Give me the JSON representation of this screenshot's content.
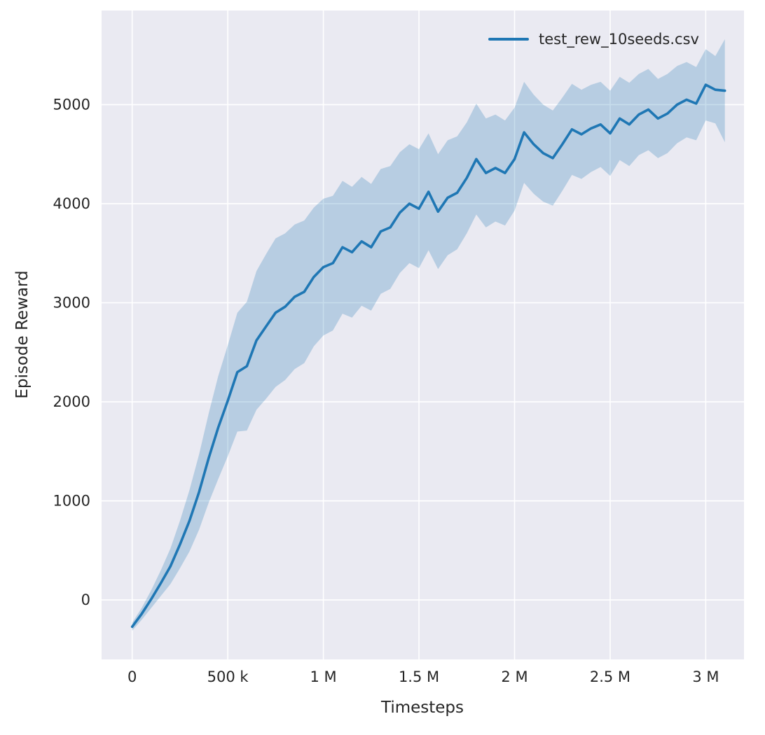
{
  "figure": {
    "background": "#ffffff",
    "axes_background": "#eaeaf2",
    "grid_color": "#ffffff",
    "text_color": "#262626"
  },
  "chart_data": {
    "type": "line",
    "title": "",
    "xlabel": "Timesteps",
    "ylabel": "Episode Reward",
    "xlim": [
      -160000,
      3200000
    ],
    "ylim": [
      -600,
      5950
    ],
    "grid": true,
    "legend_position": "upper right",
    "x_ticks": [
      {
        "value": 0,
        "label": "0"
      },
      {
        "value": 500000,
        "label": "500 k"
      },
      {
        "value": 1000000,
        "label": "1 M"
      },
      {
        "value": 1500000,
        "label": "1.5 M"
      },
      {
        "value": 2000000,
        "label": "2 M"
      },
      {
        "value": 2500000,
        "label": "2.5 M"
      },
      {
        "value": 3000000,
        "label": "3 M"
      }
    ],
    "y_ticks": [
      {
        "value": 0,
        "label": "0"
      },
      {
        "value": 1000,
        "label": "1000"
      },
      {
        "value": 2000,
        "label": "2000"
      },
      {
        "value": 3000,
        "label": "3000"
      },
      {
        "value": 4000,
        "label": "4000"
      },
      {
        "value": 5000,
        "label": "5000"
      }
    ],
    "series": [
      {
        "name": "test_rew_10seeds.csv",
        "color": "#1f77b4",
        "band_color": "#1f77b4",
        "band_opacity": 0.25,
        "x": [
          0,
          50000,
          100000,
          150000,
          200000,
          250000,
          300000,
          350000,
          400000,
          450000,
          500000,
          550000,
          600000,
          650000,
          700000,
          750000,
          800000,
          850000,
          900000,
          950000,
          1000000,
          1050000,
          1100000,
          1150000,
          1200000,
          1250000,
          1300000,
          1350000,
          1400000,
          1450000,
          1500000,
          1550000,
          1600000,
          1650000,
          1700000,
          1750000,
          1800000,
          1850000,
          1900000,
          1950000,
          2000000,
          2050000,
          2100000,
          2150000,
          2200000,
          2250000,
          2300000,
          2350000,
          2400000,
          2450000,
          2500000,
          2550000,
          2600000,
          2650000,
          2700000,
          2750000,
          2800000,
          2850000,
          2900000,
          2950000,
          3000000,
          3050000,
          3100000
        ],
        "mean": [
          -270,
          -140,
          10,
          170,
          340,
          560,
          800,
          1090,
          1430,
          1740,
          2010,
          2300,
          2360,
          2620,
          2760,
          2900,
          2960,
          3060,
          3110,
          3260,
          3360,
          3400,
          3560,
          3510,
          3620,
          3560,
          3720,
          3760,
          3910,
          4000,
          3950,
          4120,
          3920,
          4060,
          4110,
          4260,
          4450,
          4310,
          4360,
          4310,
          4450,
          4720,
          4600,
          4510,
          4460,
          4600,
          4750,
          4700,
          4760,
          4800,
          4710,
          4860,
          4800,
          4900,
          4950,
          4860,
          4910,
          5000,
          5050,
          5010,
          5200,
          5150,
          5140
        ],
        "lower": [
          -310,
          -200,
          -80,
          40,
          160,
          320,
          490,
          710,
          980,
          1220,
          1450,
          1700,
          1710,
          1920,
          2030,
          2150,
          2220,
          2330,
          2390,
          2560,
          2670,
          2720,
          2890,
          2850,
          2970,
          2920,
          3090,
          3140,
          3300,
          3400,
          3350,
          3530,
          3340,
          3480,
          3540,
          3700,
          3890,
          3760,
          3820,
          3780,
          3930,
          4210,
          4100,
          4020,
          3980,
          4130,
          4290,
          4250,
          4320,
          4370,
          4280,
          4440,
          4380,
          4490,
          4540,
          4460,
          4510,
          4610,
          4670,
          4640,
          4840,
          4810,
          4620
        ],
        "upper": [
          -230,
          -80,
          100,
          300,
          520,
          800,
          1110,
          1470,
          1880,
          2260,
          2570,
          2900,
          3010,
          3320,
          3490,
          3650,
          3700,
          3790,
          3830,
          3960,
          4050,
          4080,
          4230,
          4170,
          4270,
          4200,
          4350,
          4380,
          4520,
          4600,
          4550,
          4710,
          4500,
          4640,
          4680,
          4820,
          5010,
          4860,
          4900,
          4840,
          4970,
          5230,
          5100,
          5000,
          4940,
          5070,
          5210,
          5150,
          5200,
          5230,
          5140,
          5280,
          5220,
          5310,
          5360,
          5260,
          5310,
          5390,
          5430,
          5380,
          5560,
          5490,
          5660
        ]
      }
    ]
  }
}
